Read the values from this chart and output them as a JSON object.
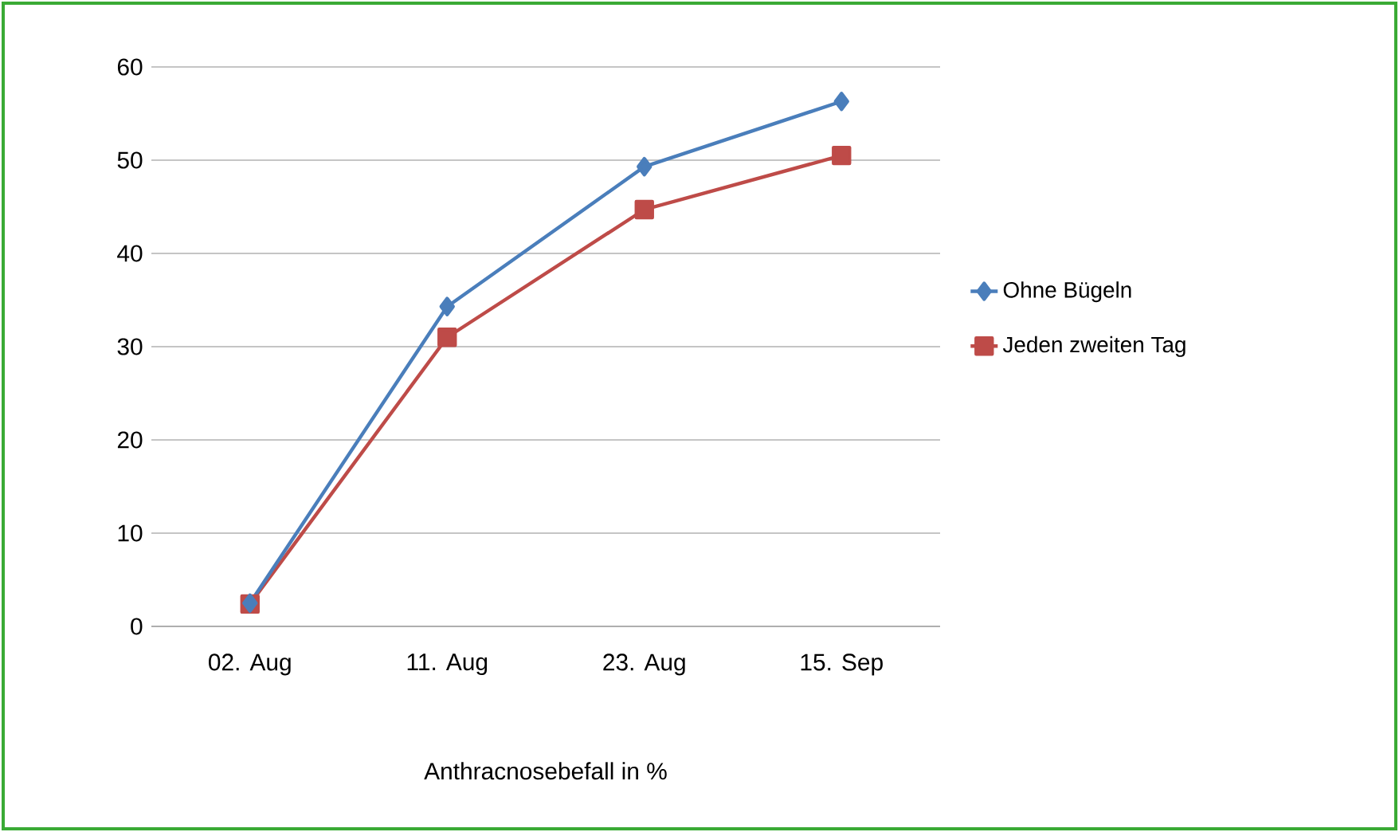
{
  "chart_data": {
    "type": "line",
    "xlabel": "Anthracnosebefall in %",
    "categories": [
      "02. Aug",
      "11. Aug",
      "23. Aug",
      "15. Sep"
    ],
    "series": [
      {
        "name": "Ohne Bügeln",
        "color": "#4a7ebb",
        "marker": "diamond",
        "values": [
          2.5,
          34.3,
          49.3,
          56.3
        ]
      },
      {
        "name": "Jeden zweiten Tag",
        "color": "#be4b48",
        "marker": "square",
        "values": [
          2.4,
          31,
          44.7,
          50.5
        ]
      }
    ],
    "ylim": [
      0,
      60
    ],
    "yticks": [
      0,
      10,
      20,
      30,
      40,
      50,
      60
    ],
    "grid": "y",
    "legend": "right"
  }
}
